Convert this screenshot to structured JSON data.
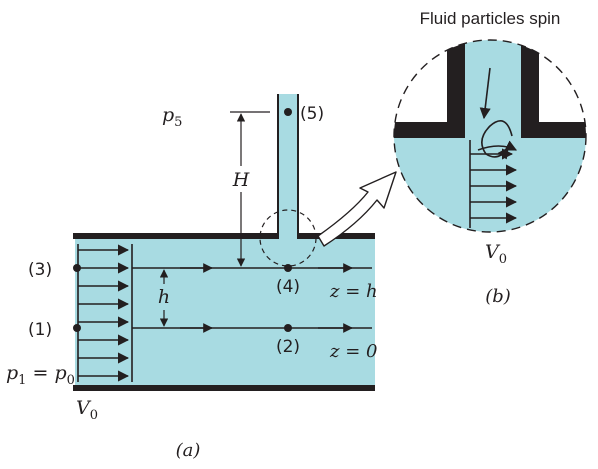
{
  "colors": {
    "fluid": "#a8dbe2",
    "wall": "#231f20",
    "line": "#231f20",
    "background": "#ffffff"
  },
  "labels": {
    "caption_spin": "Fluid particles spin",
    "p5": "p",
    "p5_sub": "5",
    "H": "H",
    "point5": "(5)",
    "point3": "(3)",
    "point1": "(1)",
    "point4": "(4)",
    "point2": "(2)",
    "h": "h",
    "z_h": "z = h",
    "z_0": "z = 0",
    "p1_eq": "p",
    "p1_sub": "1",
    "p1_equals": " = p",
    "p0_sub": "0",
    "V0_left": "V",
    "V0_left_sub": "0",
    "V0_right": "V",
    "V0_right_sub": "0",
    "part_a": "(a)",
    "part_b": "(b)"
  }
}
